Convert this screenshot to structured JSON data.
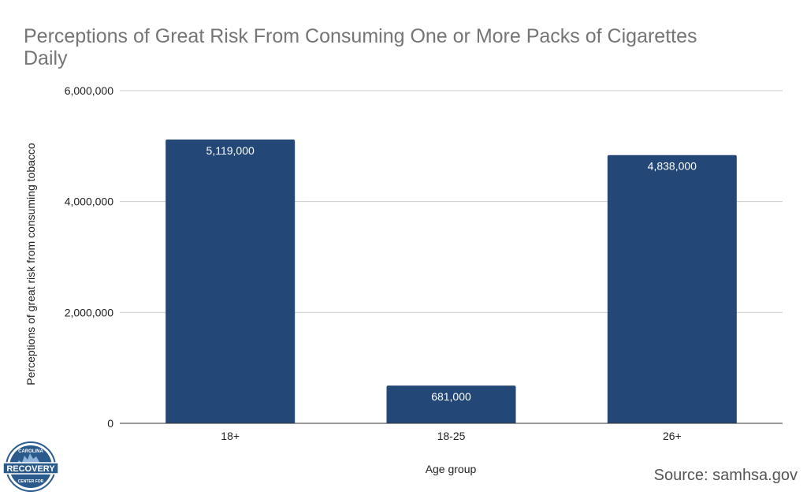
{
  "chart_data": {
    "type": "bar",
    "title_lines": [
      "Perceptions of Great Risk From Consuming One or More Packs of Cigarettes",
      "Daily"
    ],
    "xlabel": "Age group",
    "ylabel": "Perceptions of great risk from consuming tobacco",
    "categories": [
      "18+",
      "18-25",
      "26+"
    ],
    "values": [
      5119000,
      681000,
      4838000
    ],
    "value_labels": [
      "5,119,000",
      "681,000",
      "4,838,000"
    ],
    "ylim": [
      0,
      6000000
    ],
    "yticks": [
      0,
      2000000,
      4000000,
      6000000
    ],
    "ytick_labels": [
      "0",
      "2,000,000",
      "4,000,000",
      "6,000,000"
    ],
    "grid": true,
    "bar_color": "#234878"
  },
  "source": "Source: samhsa.gov",
  "logo": {
    "top_text": "CAROLINA",
    "middle_text": "RECOVERY",
    "bottom_text": "CENTER FOR",
    "color": "#2b5a8c"
  }
}
